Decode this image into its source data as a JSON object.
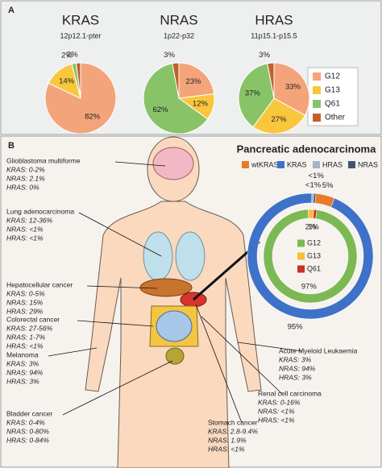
{
  "panel_labels": [
    "A",
    "B"
  ],
  "chart_data": [
    {
      "type": "pie",
      "title": "KRAS",
      "subtitle": "12p12.1-pter",
      "categories": [
        "G12",
        "G13",
        "Q61",
        "Other"
      ],
      "values": [
        82,
        14,
        2,
        2
      ],
      "value_labels": [
        "82%",
        "14%",
        "2%",
        "2%"
      ],
      "colors": [
        "#f4a47a",
        "#f9c73e",
        "#88c367",
        "#c0612b"
      ]
    },
    {
      "type": "pie",
      "title": "NRAS",
      "subtitle": "1p22-p32",
      "categories": [
        "G12",
        "G13",
        "Q61",
        "Other"
      ],
      "values": [
        23,
        12,
        62,
        3
      ],
      "value_labels": [
        "23%",
        "12%",
        "62%",
        "3%"
      ],
      "colors": [
        "#f4a47a",
        "#f9c73e",
        "#88c367",
        "#c0612b"
      ]
    },
    {
      "type": "pie",
      "title": "HRAS",
      "subtitle": "11p15.1-p15.5",
      "categories": [
        "G12",
        "G13",
        "Q61",
        "Other"
      ],
      "values": [
        33,
        27,
        37,
        3
      ],
      "value_labels": [
        "33%",
        "27%",
        "37%",
        "3%"
      ],
      "colors": [
        "#f4a47a",
        "#f9c73e",
        "#88c367",
        "#c0612b"
      ]
    },
    {
      "type": "donut",
      "title": "Pancreatic adenocarcinoma",
      "rings": [
        {
          "categories": [
            "wtKRAS",
            "KRAS",
            "HRAS",
            "NRAS"
          ],
          "values": [
            5,
            95,
            0.5,
            0.5
          ],
          "value_labels": [
            "5%",
            "95%",
            "<1%",
            "<1%"
          ],
          "colors": [
            "#e87b2a",
            "#3d72c8",
            "#a5b4c9",
            "#45546c"
          ]
        },
        {
          "categories": [
            "G12",
            "G13",
            "Q61"
          ],
          "values": [
            97,
            2,
            1
          ],
          "value_labels": [
            "97%",
            "2%",
            "1%"
          ],
          "colors": [
            "#7cb955",
            "#f5c03a",
            "#c9302c"
          ]
        }
      ]
    }
  ],
  "annotations": [
    {
      "title": "Glioblastoma multiforme",
      "lines": [
        "KRAS: 0-2%",
        "NRAS: 2.1%",
        "HRAS: 0%"
      ]
    },
    {
      "title": "Lung adenocarcinoma",
      "lines": [
        "KRAS: 12-36%",
        "NRAS: <1%",
        "HRAS: <1%"
      ]
    },
    {
      "title": "Hepatocellular cancer",
      "lines": [
        "KRAS: 0-5%",
        "NRAS: 15%",
        "HRAS: 29%"
      ]
    },
    {
      "title": "Colorectal cancer",
      "lines": [
        "KRAS: 27-56%",
        "NRAS: 1-7%",
        "HRAS: <1%"
      ]
    },
    {
      "title": "Melanoma",
      "lines": [
        "KRAS: 3%",
        "NRAS: 94%",
        "HRAS: 3%"
      ]
    },
    {
      "title": "Bladder cancer",
      "lines": [
        "KRAS: 0-4%",
        "NRAS: 0-80%",
        "HRAS: 0-84%"
      ]
    },
    {
      "title": "Stomach cancer",
      "lines": [
        "KRAS: 2.8-9.4%",
        "NRAS: 1.9%",
        "HRAS: <1%"
      ]
    },
    {
      "title": "Renal cell carcinoma",
      "lines": [
        "KRAS: 0-16%",
        "NRAS: <1%",
        "HRAS: <1%"
      ]
    },
    {
      "title": "Acute Myeloid Leukaemia",
      "lines": [
        "KRAS: 3%",
        "NRAS: 94%",
        "HRAS: 3%"
      ]
    }
  ]
}
